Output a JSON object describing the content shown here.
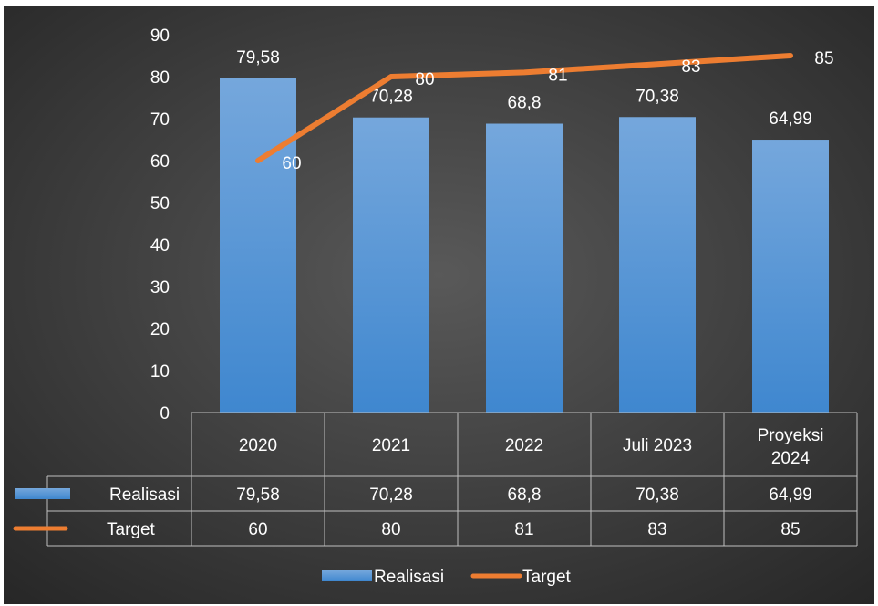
{
  "chart_data": {
    "type": "bar",
    "categories": [
      "2020",
      "2021",
      "2022",
      "Juli 2023",
      "Proyeksi 2024"
    ],
    "series": [
      {
        "name": "Realisasi",
        "kind": "bar",
        "values": [
          79.58,
          70.28,
          68.8,
          70.38,
          64.99
        ],
        "labels": [
          "79,58",
          "70,28",
          "68,8",
          "70,38",
          "64,99"
        ],
        "color": "#5b9bd5"
      },
      {
        "name": "Target",
        "kind": "line",
        "values": [
          60,
          80,
          81,
          83,
          85
        ],
        "labels": [
          "60",
          "80",
          "81",
          "83",
          "85"
        ],
        "color": "#ed7d31"
      }
    ],
    "yticks": [
      "0",
      "10",
      "20",
      "30",
      "40",
      "50",
      "60",
      "70",
      "80",
      "90"
    ],
    "ylim": [
      0,
      90
    ],
    "grid": false,
    "legend": "bottom",
    "data_table": true,
    "background": "#404040"
  }
}
